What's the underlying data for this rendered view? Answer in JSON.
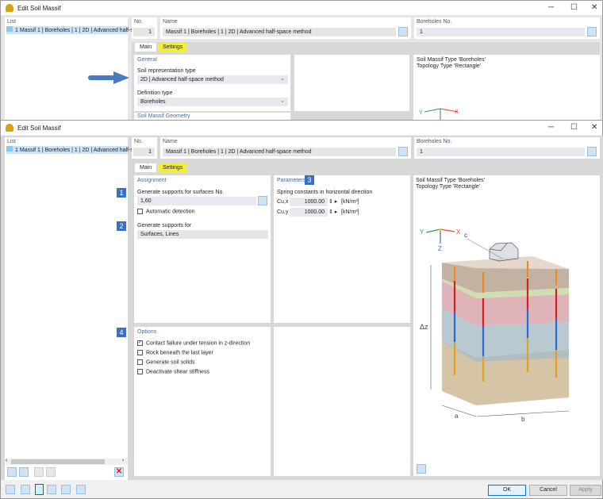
{
  "window_title": "Edit Soil Massif",
  "list": {
    "header": "List",
    "items": [
      {
        "no": "1",
        "label": "Massif 1 | Boreholes | 1 | 2D | Advanced half-spa"
      }
    ]
  },
  "no": {
    "header": "No.",
    "value": "1"
  },
  "name": {
    "header": "Name",
    "value": "Massif 1 | Boreholes | 1 | 2D | Advanced half-space method"
  },
  "boreholes": {
    "header": "Boreholes No.",
    "value": "1"
  },
  "tabs": [
    {
      "label": "Main"
    },
    {
      "label": "Settings"
    }
  ],
  "top_main": {
    "general_header": "General",
    "soil_rep_label": "Soil representation type",
    "soil_rep_value": "2D | Advanced half-space method",
    "def_type_label": "Definition type",
    "def_type_value": "Boreholes",
    "geometry_header": "Soil Massif Geometry"
  },
  "info": {
    "line1": "Soil Massif Type 'Boreholes'",
    "line2": "Topology Type 'Rectangle'"
  },
  "assignment": {
    "header": "Assignment",
    "badge": "1",
    "surfaces_label": "Generate supports for surfaces No.",
    "surfaces_value": "1,60",
    "auto_detect": "Automatic detection",
    "auto_checked": false,
    "badge2": "2",
    "supports_for_label": "Generate supports for",
    "supports_for_value": "Surfaces, Lines"
  },
  "parameters": {
    "header": "Parameters",
    "badge": "3",
    "spring_label": "Spring constants in horizontal direction",
    "rows": [
      {
        "label": "Cu,x",
        "value": "1000.00",
        "unit": "[kN/m³]"
      },
      {
        "label": "Cu,y",
        "value": "1000.00",
        "unit": "[kN/m³]"
      }
    ]
  },
  "options": {
    "header": "Options",
    "badge": "4",
    "items": [
      {
        "label": "Contact failure under tension in z-direction",
        "checked": true
      },
      {
        "label": "Rock beneath the last layer",
        "checked": false
      },
      {
        "label": "Generate soil solids",
        "checked": false
      },
      {
        "label": "Deactivate shear stiffness",
        "checked": false
      }
    ]
  },
  "diagram": {
    "axis_x": "X",
    "axis_y": "Y",
    "axis_z": "Z",
    "label_c": "c",
    "label_dz": "Δz",
    "label_a": "a",
    "label_b": "b"
  },
  "buttons": {
    "ok": "OK",
    "cancel": "Cancel",
    "apply": "Apply"
  },
  "colors": {
    "accent": "#3a6fc4",
    "tab_highlight": "#f2ef3a",
    "delete": "#e02020"
  }
}
